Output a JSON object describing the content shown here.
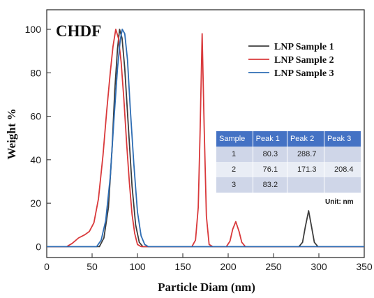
{
  "chart_data": {
    "type": "line",
    "title": "CHDF",
    "xlabel": "Particle Diam (nm)",
    "ylabel": "Weight %",
    "xlim": [
      0,
      350
    ],
    "ylim": [
      -5,
      109
    ],
    "x_ticks": [
      "0",
      "50",
      "100",
      "150",
      "200",
      "250",
      "300",
      "350"
    ],
    "y_ticks": [
      "0",
      "20",
      "40",
      "60",
      "80",
      "100"
    ],
    "grid": false,
    "legend_position": "top-right",
    "series": [
      {
        "name": "LNP Sample 1",
        "color": "#3d3d3d",
        "points": [
          [
            0,
            0
          ],
          [
            58,
            0
          ],
          [
            63,
            4
          ],
          [
            68,
            18
          ],
          [
            72,
            45
          ],
          [
            75,
            72
          ],
          [
            78,
            91
          ],
          [
            80.3,
            100
          ],
          [
            83,
            96
          ],
          [
            86,
            82
          ],
          [
            90,
            55
          ],
          [
            94,
            28
          ],
          [
            98,
            10
          ],
          [
            102,
            2
          ],
          [
            106,
            0
          ],
          [
            278,
            0
          ],
          [
            282,
            2
          ],
          [
            285,
            9
          ],
          [
            288.7,
            16.5
          ],
          [
            292,
            9
          ],
          [
            295,
            2
          ],
          [
            299,
            0
          ],
          [
            350,
            0
          ]
        ]
      },
      {
        "name": "LNP Sample 2",
        "color": "#d9393b",
        "points": [
          [
            0,
            0
          ],
          [
            22,
            0
          ],
          [
            28,
            1.5
          ],
          [
            35,
            4
          ],
          [
            42,
            5.5
          ],
          [
            47,
            7
          ],
          [
            52,
            11
          ],
          [
            57,
            22
          ],
          [
            62,
            42
          ],
          [
            66,
            62
          ],
          [
            70,
            80
          ],
          [
            73,
            92
          ],
          [
            76.1,
            100
          ],
          [
            79,
            96
          ],
          [
            82,
            85
          ],
          [
            85,
            68
          ],
          [
            88,
            48
          ],
          [
            91,
            30
          ],
          [
            94,
            15
          ],
          [
            97,
            6
          ],
          [
            100,
            1
          ],
          [
            104,
            0
          ],
          [
            160,
            0
          ],
          [
            164,
            3
          ],
          [
            167,
            18
          ],
          [
            169,
            52
          ],
          [
            171.3,
            98
          ],
          [
            173.5,
            55
          ],
          [
            176,
            14
          ],
          [
            179,
            1
          ],
          [
            183,
            0
          ],
          [
            198,
            0
          ],
          [
            202,
            2.5
          ],
          [
            205,
            8
          ],
          [
            208.4,
            11.5
          ],
          [
            212,
            7
          ],
          [
            215,
            2
          ],
          [
            219,
            0
          ],
          [
            350,
            0
          ]
        ]
      },
      {
        "name": "LNP Sample 3",
        "color": "#2e6db4",
        "points": [
          [
            0,
            0
          ],
          [
            55,
            0
          ],
          [
            60,
            3
          ],
          [
            65,
            12
          ],
          [
            70,
            32
          ],
          [
            74,
            58
          ],
          [
            78,
            82
          ],
          [
            81,
            95
          ],
          [
            83.2,
            100
          ],
          [
            86,
            98
          ],
          [
            89,
            86
          ],
          [
            92,
            64
          ],
          [
            96,
            38
          ],
          [
            100,
            16
          ],
          [
            104,
            5
          ],
          [
            108,
            1
          ],
          [
            112,
            0
          ],
          [
            350,
            0
          ]
        ]
      }
    ],
    "table": {
      "headers": [
        "Sample",
        "Peak 1",
        "Peak 2",
        "Peak 3"
      ],
      "rows": [
        [
          "1",
          "80.3",
          "288.7",
          ""
        ],
        [
          "2",
          "76.1",
          "171.3",
          "208.4"
        ],
        [
          "3",
          "83.2",
          "",
          ""
        ]
      ],
      "unit_note": "Unit: nm"
    }
  }
}
